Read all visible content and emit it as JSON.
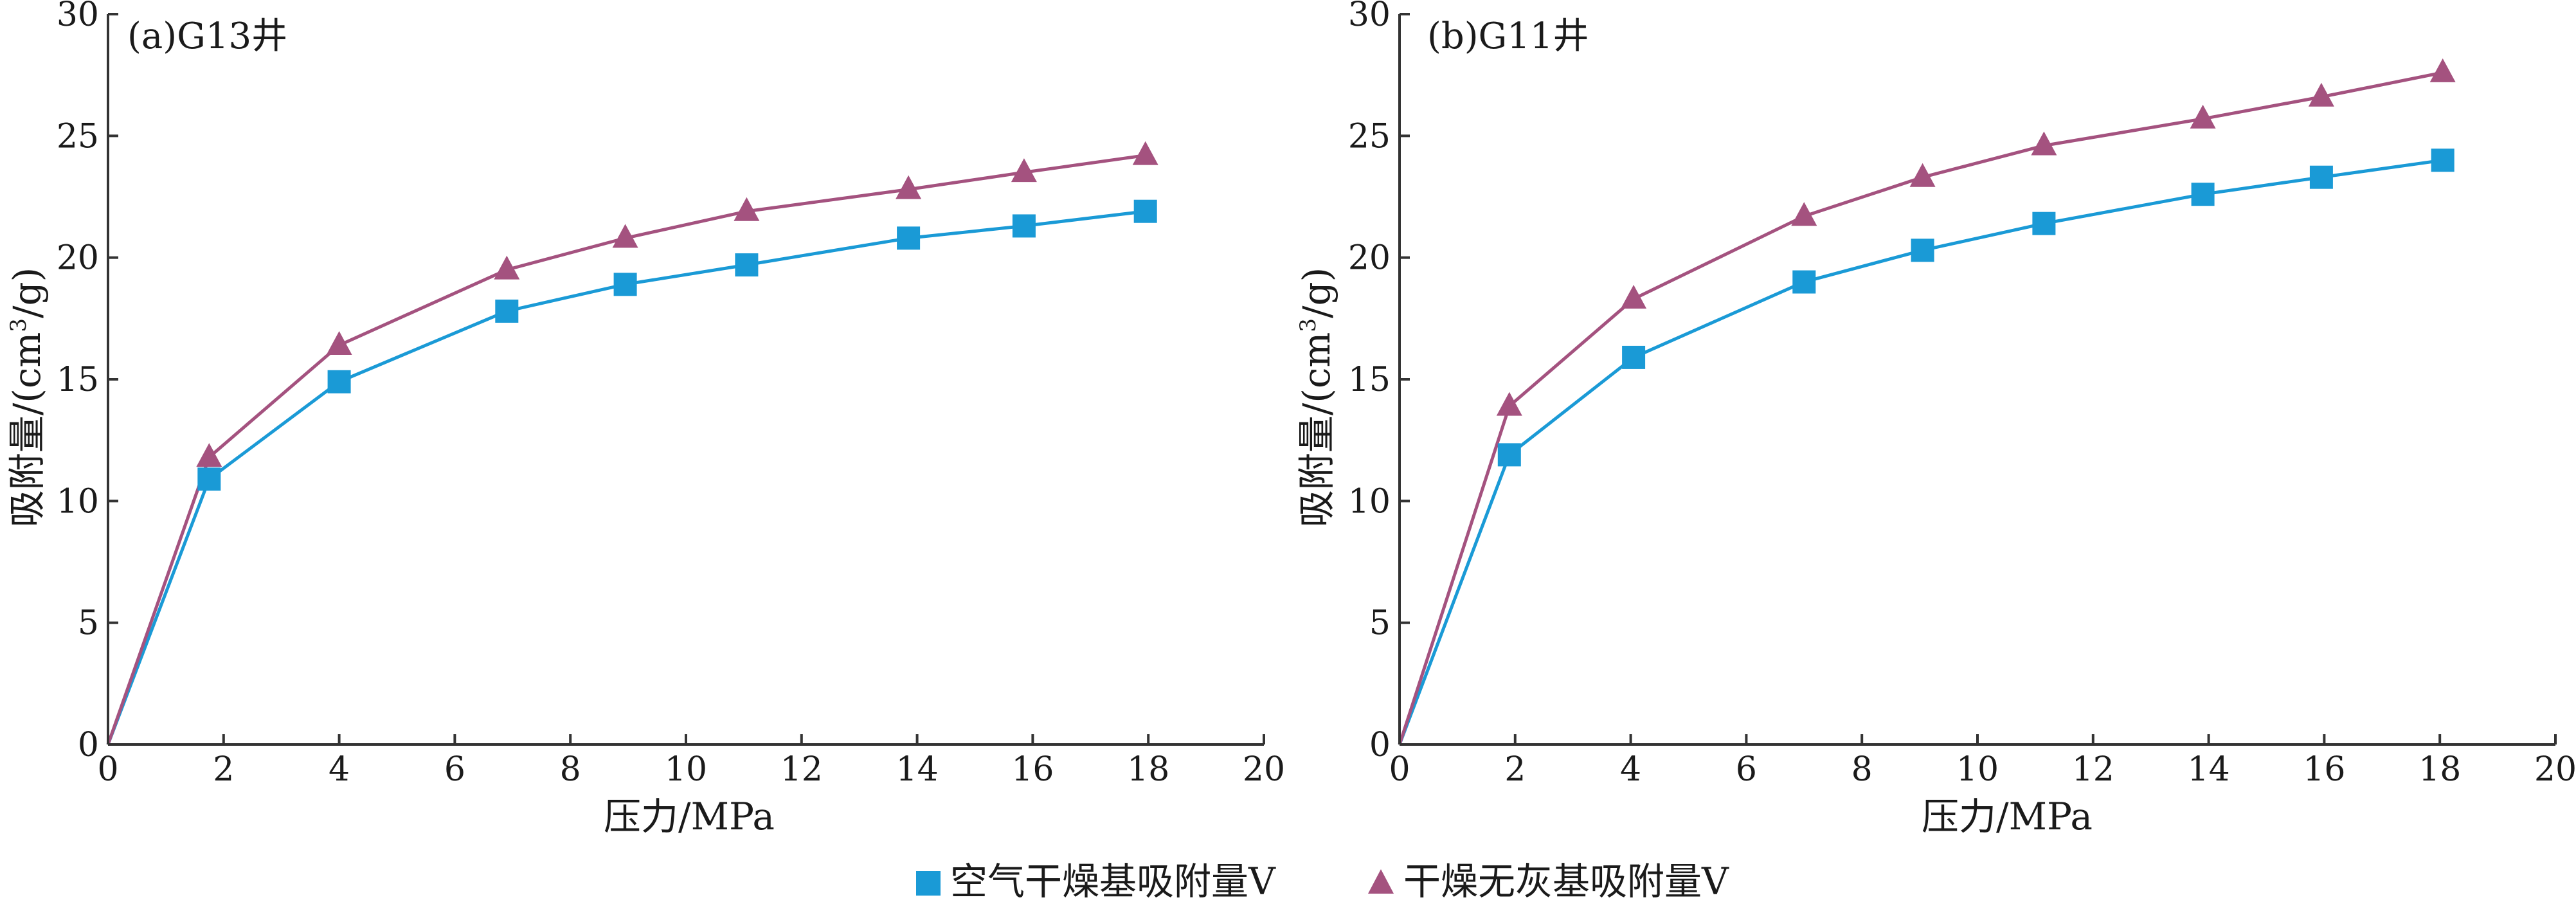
{
  "chart_data": [
    {
      "type": "line",
      "title": "(a)G13井",
      "xlabel": "压力/MPa",
      "ylabel_text": "吸附量/(cm",
      "ylabel_sup": "3",
      "ylabel_end": "/g)",
      "xlim": [
        0,
        20
      ],
      "ylim": [
        0,
        30
      ],
      "xticks": [
        0,
        2,
        4,
        6,
        8,
        10,
        12,
        14,
        16,
        18,
        20
      ],
      "yticks": [
        0,
        5,
        10,
        15,
        20,
        25,
        30
      ],
      "series": [
        {
          "name": "空气干燥基吸附量V",
          "marker": "square",
          "color": "#1a9ad6",
          "x": [
            0,
            1.75,
            4.0,
            6.9,
            8.95,
            11.05,
            13.85,
            15.85,
            17.95
          ],
          "y": [
            0,
            10.9,
            14.9,
            17.8,
            18.9,
            19.7,
            20.8,
            21.3,
            21.9
          ]
        },
        {
          "name": "干燥无灰基吸附量V",
          "marker": "triangle",
          "color": "#a4527f",
          "x": [
            0,
            1.75,
            4.0,
            6.9,
            8.95,
            11.05,
            13.85,
            15.85,
            17.95
          ],
          "y": [
            0,
            11.8,
            16.4,
            19.5,
            20.8,
            21.9,
            22.8,
            23.5,
            24.2
          ]
        }
      ]
    },
    {
      "type": "line",
      "title": "(b)G11井",
      "xlabel": "压力/MPa",
      "ylabel_text": "吸附量/(cm",
      "ylabel_sup": "3",
      "ylabel_end": "/g)",
      "xlim": [
        0,
        20
      ],
      "ylim": [
        0,
        30
      ],
      "xticks": [
        0,
        2,
        4,
        6,
        8,
        10,
        12,
        14,
        16,
        18,
        20
      ],
      "yticks": [
        0,
        5,
        10,
        15,
        20,
        25,
        30
      ],
      "series": [
        {
          "name": "空气干燥基吸附量V",
          "marker": "square",
          "color": "#1a9ad6",
          "x": [
            0,
            1.9,
            4.05,
            7.0,
            9.05,
            11.15,
            13.9,
            15.95,
            18.05
          ],
          "y": [
            0,
            11.9,
            15.9,
            19.0,
            20.3,
            21.4,
            22.6,
            23.3,
            24.0
          ]
        },
        {
          "name": "干燥无灰基吸附量V",
          "marker": "triangle",
          "color": "#a4527f",
          "x": [
            0,
            1.9,
            4.05,
            7.0,
            9.05,
            11.15,
            13.9,
            15.95,
            18.05
          ],
          "y": [
            0,
            13.9,
            18.3,
            21.7,
            23.3,
            24.6,
            25.7,
            26.6,
            27.6
          ]
        }
      ]
    }
  ],
  "legend": {
    "items": [
      {
        "label": "空气干燥基吸附量V",
        "marker": "square",
        "color": "#1a9ad6"
      },
      {
        "label": "干燥无灰基吸附量V",
        "marker": "triangle",
        "color": "#a4527f"
      }
    ]
  }
}
